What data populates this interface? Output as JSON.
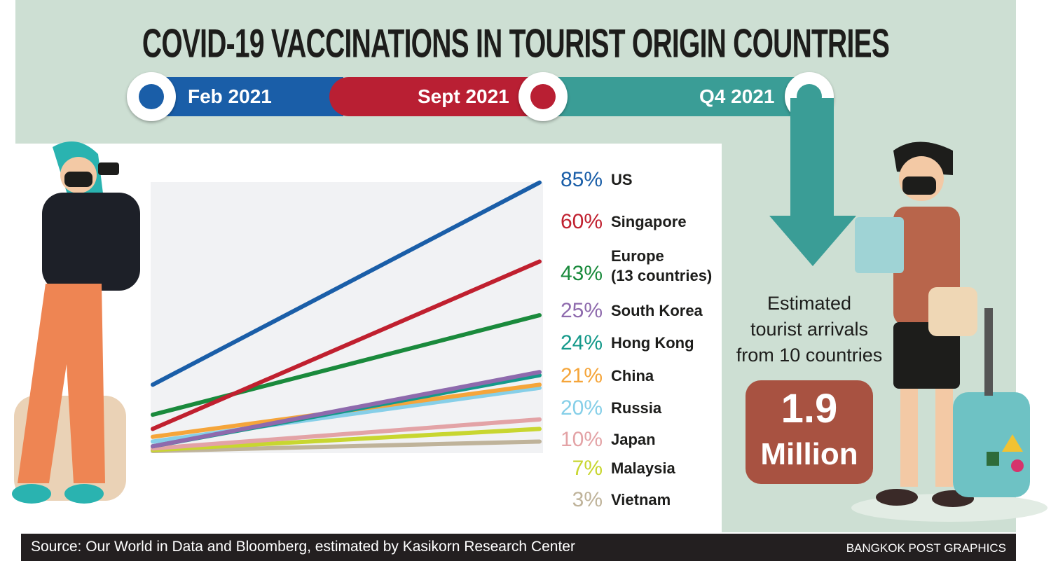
{
  "title": "COVID-19 VACCINATIONS IN TOURIST ORIGIN COUNTRIES",
  "timeline": [
    {
      "label": "Feb 2021",
      "color": "#1a5ea8"
    },
    {
      "label": "Sept 2021",
      "color": "#b91f33"
    },
    {
      "label": "Q4 2021",
      "color": "#3a9d96"
    }
  ],
  "chart_data": {
    "type": "line",
    "title": "COVID-19 vaccinations in tourist origin countries",
    "x": [
      "Sept 2021",
      "Q4 2021"
    ],
    "ylim": [
      0,
      90
    ],
    "grid": false,
    "series": [
      {
        "name": "US",
        "label": "85%",
        "values": [
          21,
          85
        ],
        "color": "#1a5ea8"
      },
      {
        "name": "Singapore",
        "label": "60%",
        "values": [
          7,
          60
        ],
        "color": "#c0202f"
      },
      {
        "name": "Europe (13 countries)",
        "name_lines": [
          "Europe",
          "(13 countries)"
        ],
        "label": "43%",
        "values": [
          11.5,
          43
        ],
        "color": "#1a8a3c"
      },
      {
        "name": "South Korea",
        "label": "25%",
        "values": [
          1.5,
          25
        ],
        "color": "#8e6aad"
      },
      {
        "name": "Hong  Kong",
        "label": "24%",
        "values": [
          1.5,
          24
        ],
        "color": "#14998a"
      },
      {
        "name": "China",
        "label": "21%",
        "values": [
          4.5,
          21
        ],
        "color": "#f5a53a"
      },
      {
        "name": "Russia",
        "label": "20%",
        "values": [
          3,
          20
        ],
        "color": "#86cfe8"
      },
      {
        "name": "Japan",
        "label": "10%",
        "values": [
          0.8,
          10
        ],
        "color": "#e3a3a6"
      },
      {
        "name": "Malaysia",
        "label": "7%",
        "values": [
          0.3,
          7
        ],
        "color": "#c8d630"
      },
      {
        "name": "Vietnam",
        "label": "3%",
        "values": [
          0,
          3
        ],
        "color": "#bfb39a"
      }
    ]
  },
  "estimate": {
    "lines": [
      "Estimated",
      "tourist arrivals",
      "from 10 countries"
    ],
    "value": "1.9",
    "unit": "Million"
  },
  "footer": {
    "source": "Source: Our World in Data and Bloomberg, estimated by Kasikorn Research Center",
    "brand": "BANGKOK POST GRAPHICS"
  }
}
